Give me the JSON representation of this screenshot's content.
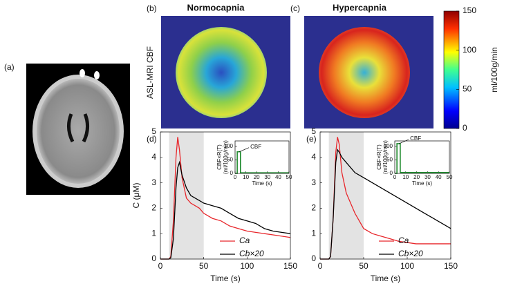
{
  "panels": {
    "a": {
      "label": "(a)"
    },
    "b": {
      "label": "(b)",
      "title": "Normocapnia",
      "ylabel": "ASL-MRI CBF"
    },
    "c": {
      "label": "(c)",
      "title": "Hypercapnia"
    },
    "d": {
      "label": "(d)"
    },
    "e": {
      "label": "(e)"
    }
  },
  "colorbar": {
    "label": "ml/100g/min",
    "lim": [
      0,
      150
    ],
    "ticks": [
      0,
      50,
      100,
      150
    ]
  },
  "chart_data": [
    {
      "type": "line",
      "xlabel": "Time (s)",
      "ylabel": "C (μM)",
      "x": [
        0,
        5,
        10,
        12,
        15,
        18,
        20,
        22,
        25,
        30,
        35,
        40,
        45,
        50,
        60,
        70,
        80,
        90,
        100,
        110,
        120,
        130,
        140,
        150
      ],
      "xlim": [
        0,
        150
      ],
      "xticks": [
        0,
        50,
        100,
        150
      ],
      "ylim": [
        0,
        5
      ],
      "yticks": [
        0,
        1,
        2,
        3,
        4,
        5
      ],
      "shade_x": [
        10,
        50
      ],
      "series": [
        {
          "name": "Ca",
          "color": "#e8262b",
          "values": [
            0,
            0,
            0,
            0.1,
            1.5,
            4.0,
            4.8,
            4.3,
            3.2,
            2.4,
            2.2,
            2.1,
            2.0,
            1.8,
            1.6,
            1.5,
            1.3,
            1.2,
            1.1,
            1.05,
            1.0,
            0.95,
            0.9,
            0.85
          ]
        },
        {
          "name": "Cb×20",
          "color": "#000000",
          "values": [
            0,
            0,
            0,
            0.05,
            0.8,
            2.8,
            3.6,
            3.8,
            3.3,
            2.8,
            2.5,
            2.4,
            2.3,
            2.2,
            2.1,
            2.0,
            1.8,
            1.6,
            1.5,
            1.4,
            1.2,
            1.1,
            1.05,
            1.0
          ]
        }
      ]
    },
    {
      "type": "line",
      "xlabel": "Time (s)",
      "ylabel": [
        "CBF×R(T)",
        "(ml/100g/min)"
      ],
      "x": [
        0,
        2,
        2,
        5,
        5,
        50
      ],
      "xlim": [
        0,
        50
      ],
      "xticks": [
        0,
        10,
        20,
        30,
        40,
        50
      ],
      "ylim": [
        0,
        120
      ],
      "yticks": [
        0,
        50,
        100
      ],
      "annotation": "CBF",
      "series": [
        {
          "color": "#1f8a2e",
          "values": [
            0,
            0,
            80,
            80,
            2,
            2
          ]
        }
      ]
    },
    {
      "type": "line",
      "xlabel": "Time (s)",
      "x": [
        0,
        5,
        10,
        12,
        15,
        18,
        20,
        22,
        25,
        30,
        35,
        40,
        45,
        50,
        60,
        70,
        80,
        90,
        100,
        110,
        120,
        130,
        140,
        150
      ],
      "xlim": [
        0,
        150
      ],
      "xticks": [
        0,
        50,
        100,
        150
      ],
      "ylim": [
        0,
        5
      ],
      "yticks": [
        0,
        1,
        2,
        3,
        4,
        5
      ],
      "shade_x": [
        10,
        50
      ],
      "series": [
        {
          "name": "Ca",
          "color": "#e8262b",
          "values": [
            0,
            0,
            0,
            0.1,
            1.6,
            4.2,
            4.8,
            4.5,
            3.4,
            2.6,
            2.2,
            1.8,
            1.5,
            1.2,
            1.0,
            0.9,
            0.8,
            0.7,
            0.65,
            0.6,
            0.6,
            0.6,
            0.6,
            0.6
          ]
        },
        {
          "name": "Cb×20",
          "color": "#000000",
          "values": [
            0,
            0,
            0,
            0.1,
            1.6,
            3.8,
            4.3,
            4.2,
            4.0,
            3.8,
            3.6,
            3.4,
            3.3,
            3.2,
            3.0,
            2.8,
            2.6,
            2.4,
            2.2,
            2.0,
            1.8,
            1.6,
            1.4,
            1.2
          ]
        }
      ]
    },
    {
      "type": "line",
      "xlabel": "Time (s)",
      "ylabel": [
        "CBF×R(T)",
        "(ml/100g/min)"
      ],
      "x": [
        0,
        2,
        2,
        5,
        5,
        50
      ],
      "xlim": [
        0,
        50
      ],
      "xticks": [
        0,
        10,
        20,
        30,
        40,
        50
      ],
      "ylim": [
        0,
        120
      ],
      "yticks": [
        0,
        50,
        100
      ],
      "annotation": "CBF",
      "series": [
        {
          "color": "#1f8a2e",
          "values": [
            0,
            0,
            110,
            110,
            3,
            3
          ]
        }
      ]
    }
  ]
}
